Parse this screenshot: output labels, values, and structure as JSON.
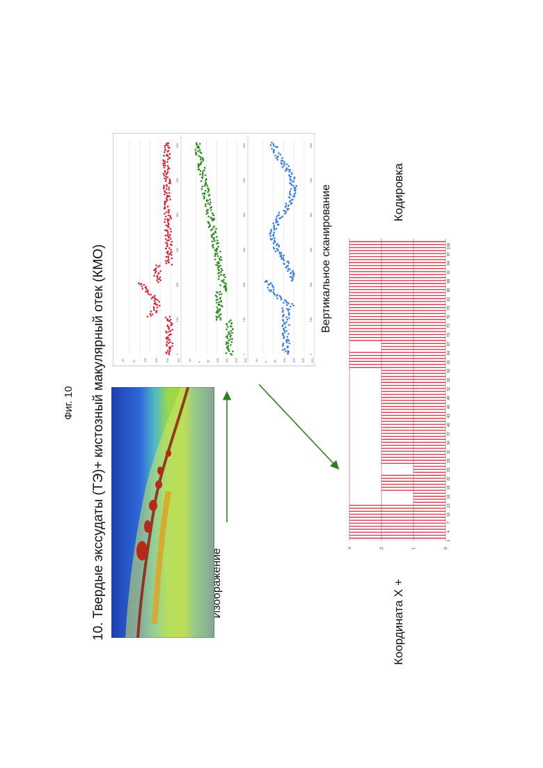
{
  "figure_label": "Фиг. 10",
  "title": "10. Твердые экссудаты (ТЭ)+ кистозный макулярный отек  (КМО)",
  "image_label": "Изображение",
  "vertical_scan_label": "Вертикальное сканирование",
  "coding_label": "Кодировка",
  "coordinate_label": "Координата X +",
  "colors": {
    "red": "#d2283c",
    "green": "#2e8b1e",
    "blue": "#3a7fe0",
    "arrow": "#2e7d1e",
    "bar": "#d23c4f"
  },
  "scatter_panels": [
    {
      "name": "red",
      "yticks": [
        "-45",
        "15",
        "105",
        "155",
        "205",
        "255"
      ],
      "xticks": [
        "1",
        "100",
        "200",
        "300",
        "400",
        "500",
        "600"
      ]
    },
    {
      "name": "green",
      "yticks": [
        "-45",
        "5",
        "55",
        "105",
        "155",
        "205",
        "255"
      ],
      "xticks": [
        "1",
        "100",
        "200",
        "300",
        "400",
        "500",
        "600"
      ]
    },
    {
      "name": "blue",
      "yticks": [
        "-45",
        "5",
        "55",
        "105",
        "155",
        "205",
        "255"
      ],
      "xticks": [
        "1",
        "100",
        "200",
        "300",
        "400",
        "500",
        "600"
      ]
    }
  ],
  "chart_data": {
    "type": "bar",
    "x": [
      1,
      2,
      3,
      4,
      5,
      6,
      7,
      8,
      9,
      10,
      11,
      12,
      13,
      14,
      15,
      16,
      17,
      18,
      19,
      20,
      21,
      22,
      23,
      24,
      25,
      26,
      27,
      28,
      29,
      30,
      31,
      32,
      33,
      34,
      35,
      36,
      37,
      38,
      39,
      40,
      41,
      42,
      43,
      44,
      45,
      46,
      47,
      48,
      49,
      50,
      51,
      52,
      53,
      54,
      55,
      56,
      57,
      58,
      59,
      60,
      61,
      62,
      63,
      64,
      65,
      66,
      67,
      68,
      69,
      70,
      71,
      72,
      73,
      74,
      75,
      76,
      77,
      78,
      79,
      80,
      81,
      82,
      83,
      84,
      85,
      86,
      87,
      88,
      89,
      90,
      91,
      92,
      93,
      94,
      95,
      96,
      97,
      98,
      99,
      100
    ],
    "xtick_labels": [
      "1",
      "4",
      "7",
      "10",
      "13",
      "16",
      "19",
      "22",
      "25",
      "28",
      "31",
      "34",
      "37",
      "40",
      "43",
      "46",
      "49",
      "52",
      "55",
      "58",
      "61",
      "64",
      "67",
      "70",
      "73",
      "76",
      "79",
      "82",
      "85",
      "88",
      "91",
      "94",
      "97",
      "100"
    ],
    "values": [
      3,
      3,
      3,
      3,
      3,
      3,
      3,
      3,
      3,
      3,
      3,
      3,
      1,
      1,
      1,
      1,
      2,
      2,
      2,
      2,
      2,
      2,
      1,
      1,
      1,
      2,
      2,
      2,
      2,
      2,
      2,
      2,
      2,
      2,
      2,
      2,
      2,
      2,
      2,
      2,
      2,
      2,
      2,
      2,
      2,
      2,
      2,
      2,
      2,
      2,
      2,
      2,
      2,
      2,
      2,
      2,
      2,
      3,
      3,
      3,
      3,
      3,
      3,
      2,
      2,
      2,
      3,
      3,
      3,
      3,
      3,
      3,
      3,
      3,
      3,
      3,
      3,
      3,
      3,
      3,
      3,
      3,
      3,
      3,
      3,
      3,
      3,
      3,
      3,
      3,
      3,
      3,
      3,
      3,
      3,
      3,
      3,
      3,
      3,
      3
    ],
    "ylim": [
      0,
      3
    ],
    "ytick_labels": [
      "0",
      "1",
      "2",
      "3"
    ]
  }
}
